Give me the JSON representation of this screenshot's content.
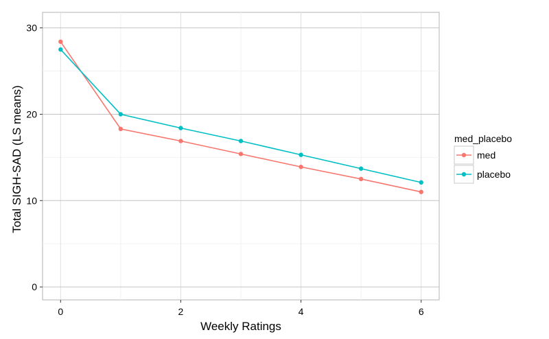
{
  "chart_data": {
    "type": "line",
    "xlabel": "Weekly Ratings",
    "ylabel": "Total SIGH-SAD (LS means)",
    "x": [
      0,
      1,
      2,
      3,
      4,
      5,
      6
    ],
    "xticks": [
      0,
      2,
      4,
      6
    ],
    "xtick_labels": [
      "0",
      "2",
      "4",
      "6"
    ],
    "yticks": [
      0,
      10,
      20,
      30
    ],
    "ytick_labels": [
      "0",
      "10",
      "20",
      "30"
    ],
    "xlim": [
      -0.3,
      6.3
    ],
    "ylim": [
      -1.5,
      31.8
    ],
    "grid": true,
    "legend": {
      "title": "med_placebo",
      "position": "right"
    },
    "series": [
      {
        "name": "med",
        "color": "#F8766D",
        "values": [
          28.4,
          18.3,
          16.9,
          15.4,
          13.9,
          12.5,
          11.0
        ]
      },
      {
        "name": "placebo",
        "color": "#00BFC4",
        "values": [
          27.5,
          20.0,
          18.4,
          16.9,
          15.3,
          13.7,
          12.1
        ]
      }
    ]
  }
}
